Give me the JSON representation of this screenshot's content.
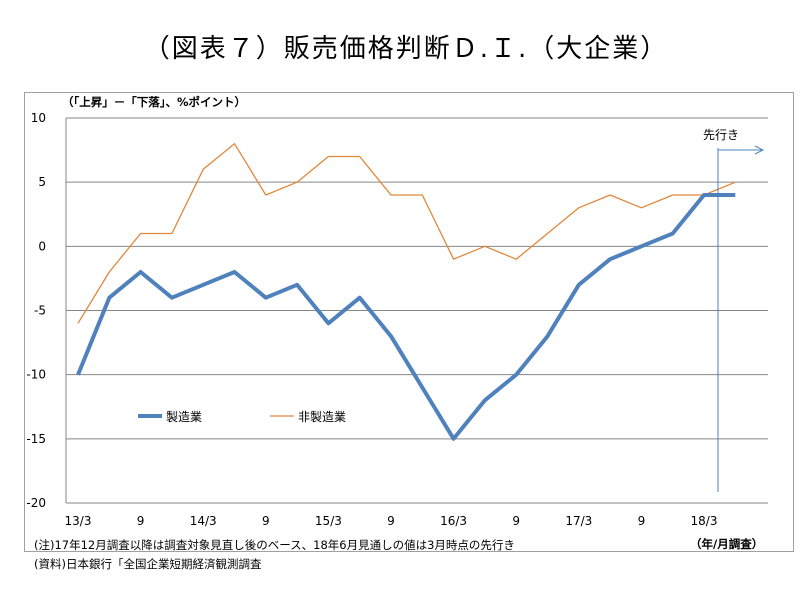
{
  "title": "（図表７）販売価格判断Ｄ.Ｉ.（大企業）",
  "notes": [
    "(注)17年12月調査以降は調査対象見直し後のベース、18年6月見通しの値は3月時点の先行き",
    "(資料)日本銀行「全国企業短期経済観測調査"
  ],
  "colors": {
    "manufacturing": "#4f81bd",
    "non_manufacturing": "#e0883a",
    "grid": "#868686"
  },
  "chart_data": {
    "type": "line",
    "title": "（図表７）販売価格判断Ｄ.Ｉ.（大企業）",
    "ylabel": "（「上昇」－「下落」、%ポイント）",
    "xlabel": "（年/月調査）",
    "ylim": [
      -20,
      10
    ],
    "yticks": [
      10,
      5,
      0,
      -5,
      -10,
      -15,
      -20
    ],
    "x_tick_labels": [
      "13/3",
      "9",
      "14/3",
      "9",
      "15/3",
      "9",
      "16/3",
      "9",
      "17/3",
      "9",
      "18/3"
    ],
    "categories": [
      "13/3",
      "13/6",
      "13/9",
      "13/12",
      "14/3",
      "14/6",
      "14/9",
      "14/12",
      "15/3",
      "15/6",
      "15/9",
      "15/12",
      "16/3",
      "16/6",
      "16/9",
      "16/12",
      "17/3",
      "17/6",
      "17/9",
      "17/12",
      "18/3",
      "18/6"
    ],
    "series": [
      {
        "name": "製造業",
        "values": [
          -10,
          -4,
          -2,
          -4,
          -3,
          -2,
          -4,
          -3,
          -6,
          -4,
          -7,
          -11,
          -15,
          -12,
          -10,
          -7,
          -3,
          -1,
          0,
          1,
          4,
          4
        ]
      },
      {
        "name": "非製造業",
        "values": [
          -6,
          -2,
          1,
          1,
          6,
          8,
          4,
          5,
          7,
          7,
          4,
          4,
          -1,
          0,
          -1,
          1,
          3,
          4,
          3,
          4,
          4,
          5
        ]
      }
    ],
    "annotation": "先行き",
    "grid": true,
    "legend_position": "inside-lower-left"
  }
}
